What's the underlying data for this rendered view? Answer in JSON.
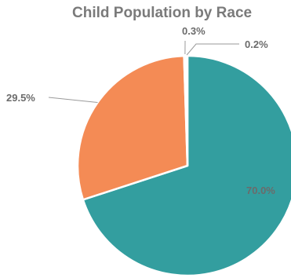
{
  "chart_data": {
    "type": "pie",
    "title": "Child Population by Race",
    "slices": [
      {
        "label": "70.0%",
        "value": 70.0,
        "color": "#339e9f"
      },
      {
        "label": "29.5%",
        "value": 29.5,
        "color": "#f48b55"
      },
      {
        "label": "0.3%",
        "value": 0.3,
        "color": "#8fc8c8"
      },
      {
        "label": "0.2%",
        "value": 0.2,
        "color": "#7fbfbf"
      }
    ]
  }
}
